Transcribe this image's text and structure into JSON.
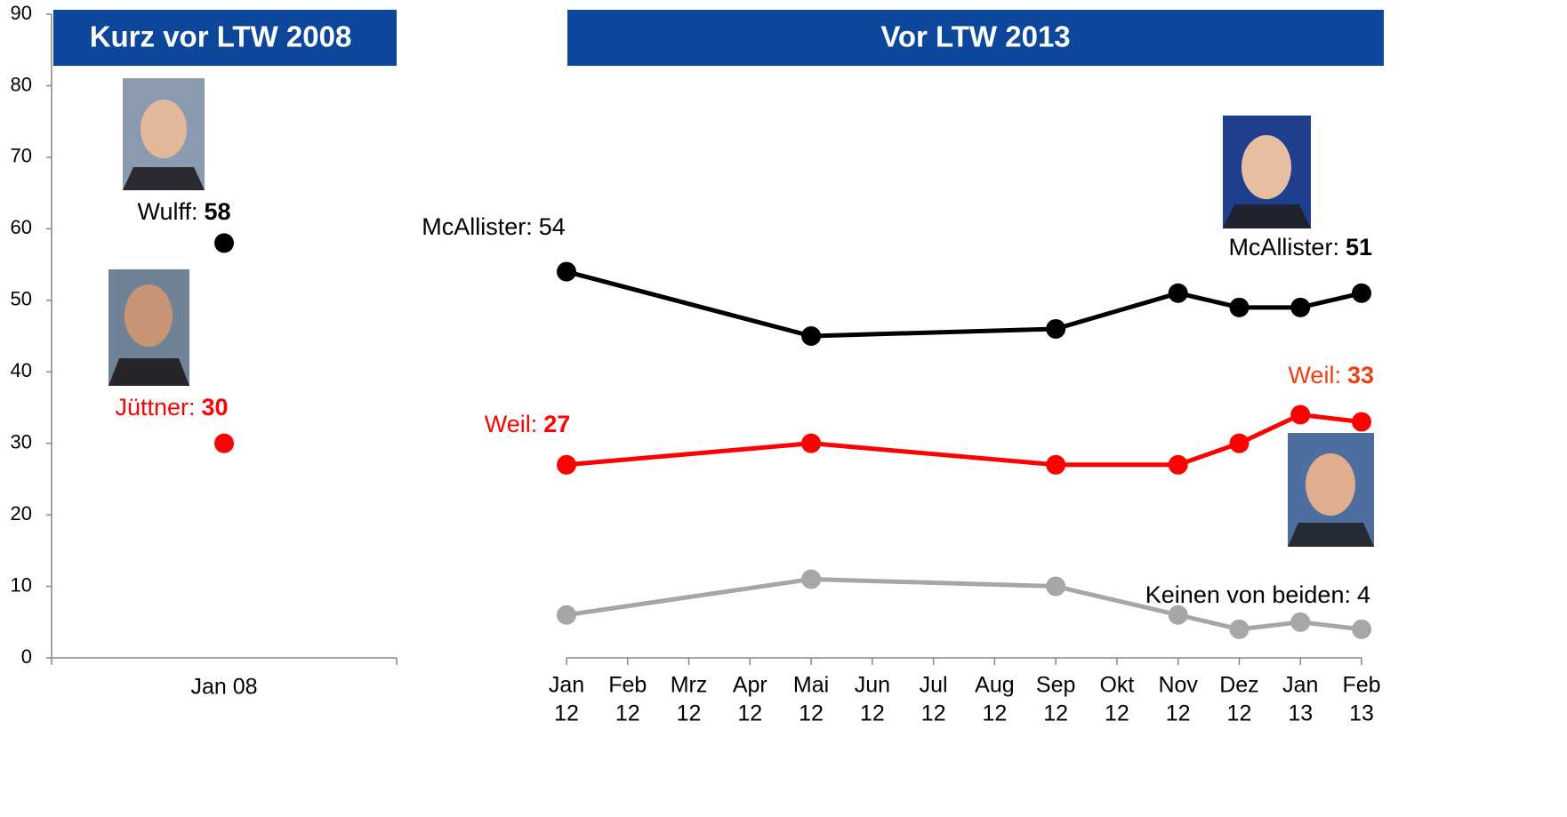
{
  "chart_data": [
    {
      "type": "scatter",
      "title": "Kurz vor LTW 2008",
      "categories": [
        "Jan 08"
      ],
      "ylim": [
        0,
        90
      ],
      "yticks": [
        0,
        10,
        20,
        30,
        40,
        50,
        60,
        70,
        80,
        90
      ],
      "series": [
        {
          "label": "Wulff:",
          "color": "#000000",
          "values": [
            58
          ]
        },
        {
          "label": "Jüttner:",
          "color": "#ff0000",
          "values": [
            30
          ]
        }
      ]
    },
    {
      "type": "line",
      "title": "Vor LTW 2013",
      "categories": [
        [
          "Jan",
          "12"
        ],
        [
          "Feb",
          "12"
        ],
        [
          "Mrz",
          "12"
        ],
        [
          "Apr",
          "12"
        ],
        [
          "Mai",
          "12"
        ],
        [
          "Jun",
          "12"
        ],
        [
          "Jul",
          "12"
        ],
        [
          "Aug",
          "12"
        ],
        [
          "Sep",
          "12"
        ],
        [
          "Okt",
          "12"
        ],
        [
          "Nov",
          "12"
        ],
        [
          "Dez",
          "12"
        ],
        [
          "Jan",
          "13"
        ],
        [
          "Feb",
          "13"
        ]
      ],
      "ylim": [
        0,
        90
      ],
      "connect_gaps": true,
      "series": [
        {
          "label": "McAllister:",
          "color": "#000000",
          "values": [
            54,
            null,
            null,
            null,
            45,
            null,
            null,
            null,
            46,
            null,
            51,
            49,
            49,
            51
          ]
        },
        {
          "label": "Weil:",
          "color": "#ff0000",
          "values": [
            27,
            null,
            null,
            null,
            30,
            null,
            null,
            null,
            27,
            null,
            27,
            30,
            34,
            33
          ]
        },
        {
          "label": "Keinen von beiden:",
          "color": "#a6a6a6",
          "values": [
            6,
            null,
            null,
            null,
            11,
            null,
            null,
            null,
            10,
            null,
            6,
            4,
            5,
            4
          ]
        }
      ]
    }
  ]
}
